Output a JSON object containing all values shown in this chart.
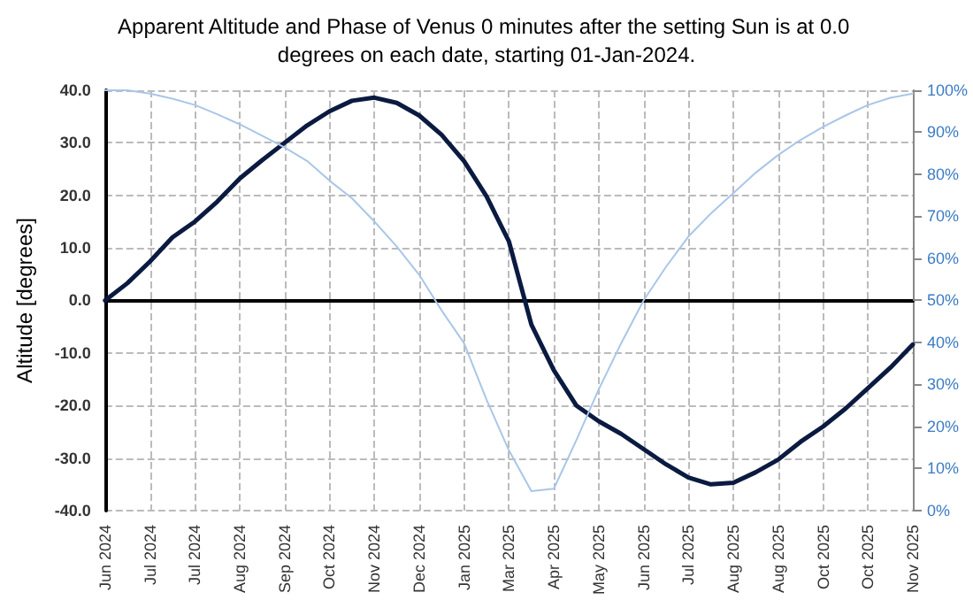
{
  "chart_data": {
    "type": "line",
    "title": "Apparent Altitude and Phase of Venus 0 minutes after the setting Sun is at 0.0 degrees on each date, starting 01-Jan-2024.",
    "ylabel": "Altitude [degrees]",
    "categories": [
      "Jun 2024",
      null,
      "Jul 2024",
      null,
      "Jul 2024",
      null,
      "Aug 2024",
      null,
      "Sep 2024",
      null,
      "Oct 2024",
      null,
      "Nov 2024",
      null,
      "Dec 2024",
      null,
      "Jan 2025",
      null,
      "Mar 2025",
      null,
      "Apr 2025",
      null,
      "May 2025",
      null,
      "Jun 2025",
      null,
      "Jul 2025",
      null,
      "Aug 2025",
      null,
      "Aug 2025",
      null,
      "Oct 2025",
      null,
      "Oct 2025",
      null,
      "Nov 2025"
    ],
    "series": [
      {
        "color": "#0b1a40",
        "values": [
          0,
          3.3,
          7.4,
          12,
          15,
          18.8,
          23.2,
          26.7,
          30,
          33.3,
          36,
          38,
          38.6,
          37.6,
          35.2,
          31.5,
          26.5,
          19.8,
          11.2,
          -4.6,
          -13.3,
          -20,
          -23,
          -25.4,
          -28.3,
          -31.2,
          -33.7,
          -35,
          -34.7,
          -32.7,
          -30.3,
          -26.9,
          -24,
          -20.6,
          -16.7,
          -12.8,
          -8.4
        ]
      },
      {
        "color": "#a9c6e8",
        "axis": "y2",
        "values": [
          100,
          100,
          99.2,
          98,
          96.5,
          94.3,
          91.9,
          89.2,
          86.4,
          83.2,
          78.5,
          74.3,
          68.8,
          62.8,
          56.1,
          47.6,
          39.8,
          26.4,
          14.3,
          4.6,
          5.2,
          16.7,
          28.8,
          39.8,
          50,
          58,
          65.2,
          70.7,
          75.5,
          80.4,
          84.6,
          88.2,
          91.3,
          94,
          96.5,
          98.2,
          99.2
        ]
      }
    ],
    "ylim": [
      -40,
      40
    ],
    "yticks": [
      {
        "value": -40,
        "label": "-40.0"
      },
      {
        "value": -30,
        "label": "-30.0"
      },
      {
        "value": -20,
        "label": "-20.0"
      },
      {
        "value": -10,
        "label": "-10.0"
      },
      {
        "value": 0,
        "label": "0.0"
      },
      {
        "value": 10,
        "label": "10.0"
      },
      {
        "value": 20,
        "label": "20.0"
      },
      {
        "value": 30,
        "label": "30.0"
      },
      {
        "value": 40,
        "label": "40.0"
      }
    ],
    "y2lim": [
      0,
      100
    ],
    "y2ticks": [
      {
        "value": 0,
        "label": "0%"
      },
      {
        "value": 10,
        "label": "10%"
      },
      {
        "value": 20,
        "label": "20%"
      },
      {
        "value": 30,
        "label": "30%"
      },
      {
        "value": 40,
        "label": "40%"
      },
      {
        "value": 50,
        "label": "50%"
      },
      {
        "value": 60,
        "label": "60%"
      },
      {
        "value": 70,
        "label": "70%"
      },
      {
        "value": 80,
        "label": "80%"
      },
      {
        "value": 90,
        "label": "90%"
      },
      {
        "value": 100,
        "label": "100%"
      }
    ],
    "grid": true,
    "marker": "none",
    "line_style": "solid"
  }
}
